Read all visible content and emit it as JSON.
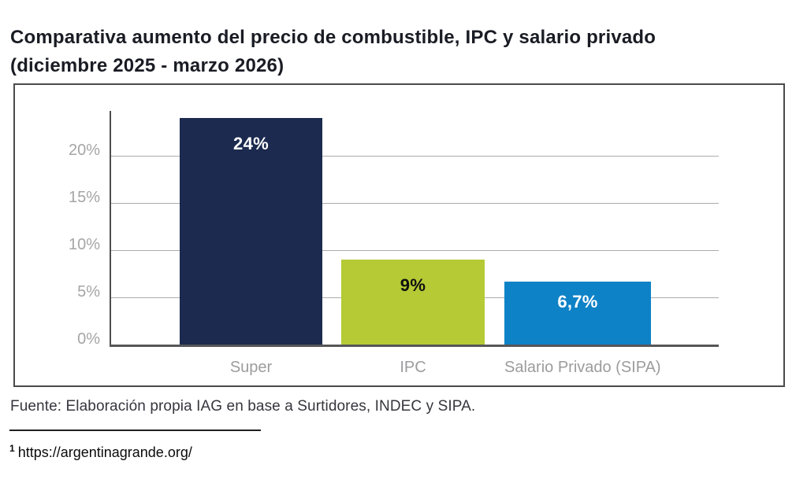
{
  "title": {
    "line1": "Comparativa aumento del precio de combustible, IPC y salario privado",
    "line2": "(diciembre 2025 - marzo 2026)"
  },
  "chart_data": {
    "type": "bar",
    "title": "Comparativa aumento del precio de combustible, IPC y salario privado (diciembre 2025 - marzo 2026)",
    "categories": [
      "Super",
      "IPC",
      "Salario Privado (SIPA)"
    ],
    "values": [
      24,
      9,
      6.7
    ],
    "value_labels": [
      "24%",
      "9%",
      "6,7%"
    ],
    "bar_colors": [
      "#1b2a4e",
      "#b5ca35",
      "#0e82c6"
    ],
    "value_label_colors": [
      "#ffffff",
      "#101010",
      "#ffffff"
    ],
    "yticks": [
      0,
      5,
      10,
      15,
      20
    ],
    "ytick_labels": [
      "0%",
      "5%",
      "10%",
      "15%",
      "20%"
    ],
    "ylim": [
      0,
      25
    ],
    "xlabel": "",
    "ylabel": "",
    "grid": true,
    "legend": false,
    "colors": {
      "gridline": "#ababab",
      "axis_line": "#4d4d4f",
      "tick_label": "#a5a5a7",
      "category_label": "#9c9c9e"
    }
  },
  "source": "Fuente: Elaboración propia IAG en base a Surtidores, INDEC y SIPA.",
  "footnote": {
    "marker": "1",
    "url": "https://argentinagrande.org/"
  }
}
